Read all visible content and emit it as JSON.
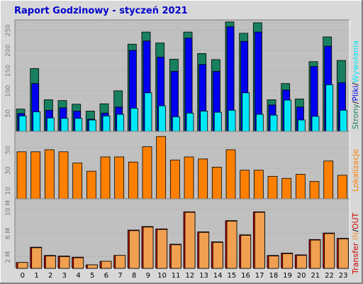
{
  "title": "Raport Godzinowy -  styczeń 2021",
  "colors": {
    "background": "#d8d8d8",
    "panel": "#c0c0c0",
    "strony": "#188060",
    "pliki": "#0000f0",
    "wywolania": "#00e8f8",
    "lokalizacje": "#ff8000",
    "transfer_out": "#cc0000",
    "transfer_in": "#f0a050"
  },
  "legend": {
    "panel1": {
      "strony": "Strony",
      "sep1": "/",
      "pliki": "Pliki",
      "sep2": "/",
      "wywolania": "Wywołania"
    },
    "panel2": {
      "lokalizacje": "Lokalizacje"
    },
    "panel3": {
      "transfer": "Transfer",
      "in": "IN",
      "sep": "/",
      "out": "OUT"
    }
  },
  "chart_data": [
    {
      "type": "bar",
      "categories": [
        "0",
        "1",
        "2",
        "3",
        "4",
        "5",
        "6",
        "7",
        "8",
        "9",
        "10",
        "11",
        "12",
        "13",
        "14",
        "15",
        "16",
        "17",
        "18",
        "19",
        "20",
        "21",
        "22",
        "23"
      ],
      "y_ticks": [
        "50",
        "100",
        "150",
        "200",
        "250"
      ],
      "ylim": [
        0,
        275
      ],
      "series": [
        {
          "name": "Strony",
          "values": [
            55,
            155,
            78,
            76,
            67,
            50,
            68,
            100,
            215,
            245,
            218,
            178,
            245,
            192,
            177,
            270,
            242,
            268,
            78,
            118,
            80,
            172,
            233,
            175
          ]
        },
        {
          "name": "Pliki",
          "values": [
            44,
            118,
            52,
            58,
            50,
            30,
            45,
            60,
            200,
            223,
            183,
            148,
            230,
            165,
            148,
            258,
            222,
            245,
            65,
            102,
            60,
            160,
            210,
            120
          ]
        },
        {
          "name": "Wywołania",
          "values": [
            38,
            48,
            33,
            32,
            32,
            28,
            38,
            42,
            57,
            95,
            63,
            36,
            45,
            50,
            47,
            52,
            95,
            42,
            40,
            77,
            28,
            37,
            115,
            52
          ]
        }
      ]
    },
    {
      "type": "bar",
      "categories": [
        "0",
        "1",
        "2",
        "3",
        "4",
        "5",
        "6",
        "7",
        "8",
        "9",
        "10",
        "11",
        "12",
        "13",
        "14",
        "15",
        "16",
        "17",
        "18",
        "19",
        "20",
        "21",
        "22",
        "23"
      ],
      "y_ticks": [
        "10",
        "30",
        "50"
      ],
      "ylim": [
        0,
        66
      ],
      "series": [
        {
          "name": "Lokalizacje",
          "values": [
            46,
            46,
            48,
            46,
            35,
            27,
            41,
            41,
            36,
            51,
            61,
            38,
            41,
            39,
            31,
            48,
            28,
            28,
            22,
            20,
            24,
            17,
            37,
            23
          ]
        }
      ]
    },
    {
      "type": "bar",
      "categories": [
        "0",
        "1",
        "2",
        "3",
        "4",
        "5",
        "6",
        "7",
        "8",
        "9",
        "10",
        "11",
        "12",
        "13",
        "14",
        "15",
        "16",
        "17",
        "18",
        "19",
        "20",
        "21",
        "22",
        "23"
      ],
      "y_ticks": [
        "2 M",
        "6 M",
        "10 M"
      ],
      "ylim": [
        0,
        11.8
      ],
      "series": [
        {
          "name": "OUT",
          "values": [
            1.0,
            3.6,
            2.2,
            2.1,
            1.9,
            0.6,
            1.2,
            2.2,
            6.5,
            7.1,
            6.7,
            4.1,
            9.6,
            6.2,
            4.5,
            8.1,
            5.7,
            9.6,
            2.2,
            2.6,
            2.3,
            4.9,
            6.0,
            5.1
          ]
        },
        {
          "name": "IN",
          "values": [
            1.0,
            3.5,
            2.1,
            2.0,
            1.8,
            0.6,
            1.2,
            2.2,
            6.4,
            7.0,
            6.6,
            4.0,
            9.5,
            6.1,
            4.4,
            8.0,
            5.6,
            9.5,
            2.1,
            2.5,
            2.2,
            4.8,
            5.9,
            5.0
          ]
        }
      ]
    }
  ]
}
